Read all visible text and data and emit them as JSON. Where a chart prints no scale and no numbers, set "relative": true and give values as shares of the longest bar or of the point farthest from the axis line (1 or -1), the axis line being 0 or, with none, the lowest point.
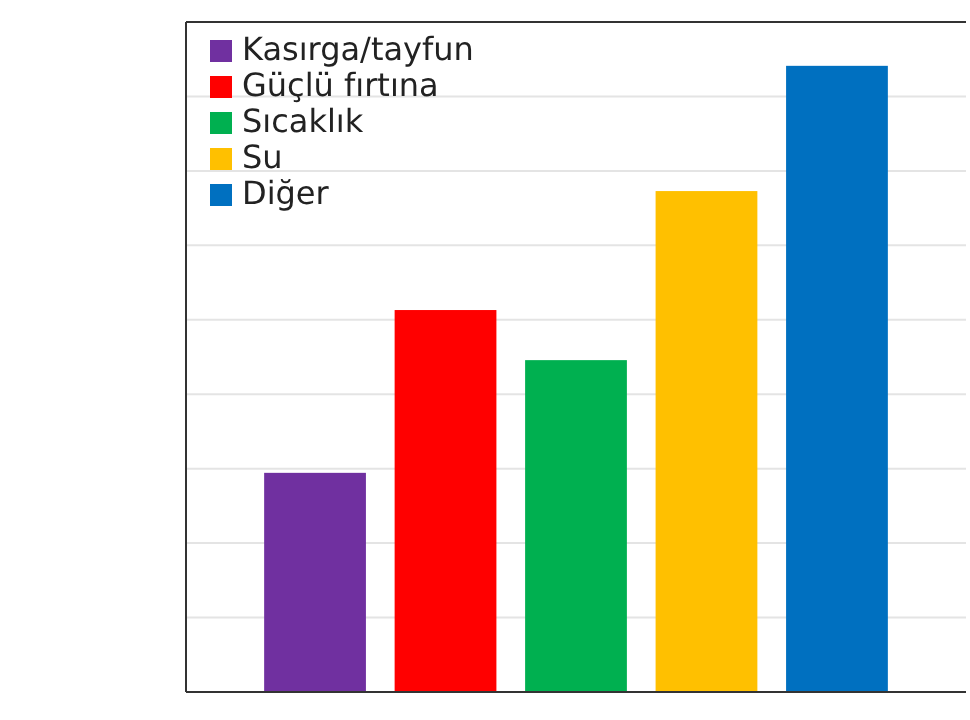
{
  "chart_data": {
    "type": "bar",
    "relative": true,
    "categories": [
      null
    ],
    "series": [
      {
        "name": "Kasırga/tayfun",
        "color": "#7030a0",
        "values": [
          0.35
        ]
      },
      {
        "name": "Güçlü fırtına",
        "color": "#ff0000",
        "values": [
          0.61
        ]
      },
      {
        "name": "Sıcaklık",
        "color": "#00b050",
        "values": [
          0.53
        ]
      },
      {
        "name": "Su",
        "color": "#ffc000",
        "values": [
          0.8
        ]
      },
      {
        "name": "Diğer",
        "color": "#0070c0",
        "values": [
          1
        ]
      }
    ],
    "grid": true,
    "legend": "top left"
  }
}
